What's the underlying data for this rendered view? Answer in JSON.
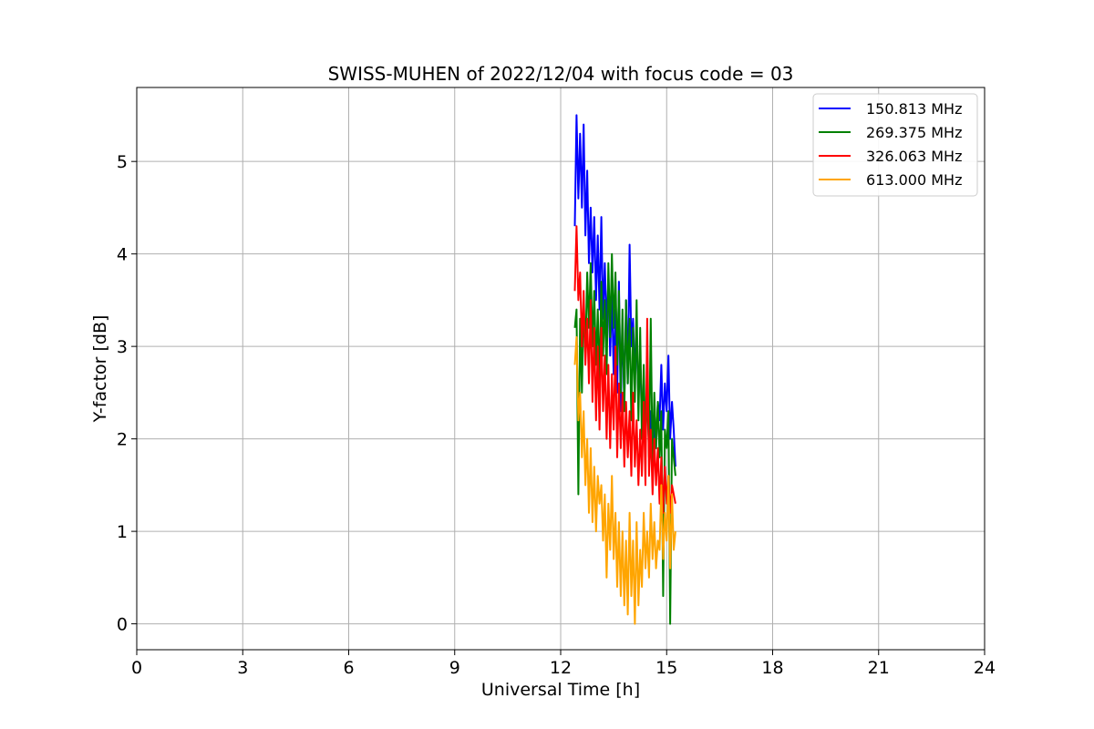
{
  "chart_data": {
    "type": "line",
    "title": "SWISS-MUHEN of 2022/12/04 with focus code = 03",
    "xlabel": "Universal Time [h]",
    "ylabel": "Y-factor [dB]",
    "xlim": [
      0,
      24
    ],
    "ylim": [
      -0.28,
      5.8
    ],
    "xticks": [
      0,
      3,
      6,
      9,
      12,
      15,
      18,
      21,
      24
    ],
    "xtick_labels": [
      "0",
      "3",
      "6",
      "9",
      "12",
      "15",
      "18",
      "21",
      "24"
    ],
    "yticks": [
      0,
      1,
      2,
      3,
      4,
      5
    ],
    "ytick_labels": [
      "0",
      "1",
      "2",
      "3",
      "4",
      "5"
    ],
    "grid": true,
    "legend_position": "top-right",
    "series": [
      {
        "name": "150.813 MHz",
        "color": "#0000ff",
        "x": [
          12.4,
          12.45,
          12.5,
          12.55,
          12.6,
          12.65,
          12.7,
          12.75,
          12.8,
          12.85,
          12.9,
          12.95,
          13.0,
          13.05,
          13.1,
          13.15,
          13.2,
          13.25,
          13.3,
          13.35,
          13.4,
          13.45,
          13.5,
          13.55,
          13.6,
          13.65,
          13.7,
          13.75,
          13.8,
          13.85,
          13.9,
          13.95,
          14.0,
          14.05,
          14.1,
          14.15,
          14.2,
          14.25,
          14.3,
          14.35,
          14.4,
          14.45,
          14.5,
          14.55,
          14.6,
          14.65,
          14.7,
          14.75,
          14.8,
          14.85,
          14.9,
          14.95,
          15.0,
          15.05,
          15.1,
          15.15,
          15.2,
          15.25
        ],
        "y": [
          4.3,
          5.5,
          4.6,
          5.3,
          4.5,
          5.4,
          4.2,
          4.9,
          3.9,
          4.5,
          3.8,
          4.4,
          3.5,
          4.2,
          3.4,
          4.4,
          3.3,
          3.9,
          3.2,
          3.7,
          2.9,
          3.6,
          2.7,
          3.4,
          2.5,
          3.7,
          2.3,
          3.3,
          2.4,
          3.5,
          2.6,
          4.1,
          3.0,
          3.3,
          2.7,
          3.1,
          2.4,
          2.9,
          2.2,
          2.6,
          2.0,
          2.5,
          1.9,
          2.3,
          1.8,
          2.2,
          1.9,
          2.4,
          2.2,
          2.8,
          2.1,
          2.6,
          2.3,
          2.9,
          2.0,
          2.4,
          2.1,
          1.7
        ]
      },
      {
        "name": "269.375 MHz",
        "color": "#008000",
        "x": [
          12.4,
          12.45,
          12.5,
          12.55,
          12.6,
          12.65,
          12.7,
          12.75,
          12.8,
          12.85,
          12.9,
          12.95,
          13.0,
          13.05,
          13.1,
          13.15,
          13.2,
          13.25,
          13.3,
          13.35,
          13.4,
          13.45,
          13.5,
          13.55,
          13.6,
          13.65,
          13.7,
          13.75,
          13.8,
          13.85,
          13.9,
          13.95,
          14.0,
          14.05,
          14.1,
          14.15,
          14.2,
          14.25,
          14.3,
          14.35,
          14.4,
          14.45,
          14.5,
          14.55,
          14.6,
          14.65,
          14.7,
          14.75,
          14.8,
          14.85,
          14.9,
          14.95,
          15.0,
          15.05,
          15.1,
          15.15,
          15.2,
          15.25
        ],
        "y": [
          3.2,
          3.4,
          1.4,
          3.3,
          2.5,
          3.5,
          2.9,
          3.8,
          3.2,
          3.9,
          3.0,
          3.6,
          2.8,
          3.4,
          2.6,
          3.7,
          2.9,
          3.5,
          2.7,
          3.9,
          3.1,
          4.0,
          3.2,
          3.8,
          2.8,
          3.6,
          2.5,
          3.4,
          2.3,
          3.5,
          2.6,
          3.3,
          2.2,
          3.2,
          2.4,
          3.5,
          2.2,
          3.2,
          2.0,
          2.8,
          1.9,
          2.6,
          1.8,
          3.3,
          1.7,
          2.5,
          1.9,
          2.4,
          1.8,
          2.3,
          0.3,
          2.1,
          1.9,
          2.3,
          0.0,
          2.0,
          1.8,
          1.6
        ]
      },
      {
        "name": "326.063 MHz",
        "color": "#ff0000",
        "x": [
          12.4,
          12.45,
          12.5,
          12.55,
          12.6,
          12.65,
          12.7,
          12.75,
          12.8,
          12.85,
          12.9,
          12.95,
          13.0,
          13.05,
          13.1,
          13.15,
          13.2,
          13.25,
          13.3,
          13.35,
          13.4,
          13.45,
          13.5,
          13.55,
          13.6,
          13.65,
          13.7,
          13.75,
          13.8,
          13.85,
          13.9,
          13.95,
          14.0,
          14.05,
          14.1,
          14.15,
          14.2,
          14.25,
          14.3,
          14.35,
          14.4,
          14.45,
          14.5,
          14.55,
          14.6,
          14.65,
          14.7,
          14.75,
          14.8,
          14.85,
          14.9,
          14.95,
          15.0,
          15.05,
          15.1,
          15.15,
          15.2,
          15.25
        ],
        "y": [
          3.6,
          4.3,
          3.5,
          3.8,
          3.0,
          3.6,
          2.8,
          3.3,
          2.6,
          3.5,
          2.4,
          3.2,
          2.2,
          3.0,
          2.1,
          3.2,
          2.3,
          2.9,
          2.0,
          2.8,
          1.9,
          2.7,
          2.1,
          3.0,
          1.8,
          2.6,
          1.9,
          2.5,
          1.7,
          2.4,
          1.8,
          2.3,
          1.6,
          2.5,
          1.7,
          2.2,
          1.5,
          2.1,
          1.6,
          2.4,
          1.5,
          3.3,
          1.6,
          2.1,
          1.4,
          2.0,
          1.5,
          1.9,
          1.3,
          1.8,
          1.2,
          1.7,
          1.3,
          1.6,
          1.2,
          1.5,
          1.4,
          1.3
        ]
      },
      {
        "name": "613.000 MHz",
        "color": "#ffa500",
        "x": [
          12.4,
          12.45,
          12.5,
          12.55,
          12.6,
          12.65,
          12.7,
          12.75,
          12.8,
          12.85,
          12.9,
          12.95,
          13.0,
          13.05,
          13.1,
          13.15,
          13.2,
          13.25,
          13.3,
          13.35,
          13.4,
          13.45,
          13.5,
          13.55,
          13.6,
          13.65,
          13.7,
          13.75,
          13.8,
          13.85,
          13.9,
          13.95,
          14.0,
          14.05,
          14.1,
          14.15,
          14.2,
          14.25,
          14.3,
          14.35,
          14.4,
          14.45,
          14.5,
          14.55,
          14.6,
          14.65,
          14.7,
          14.75,
          14.8,
          14.85,
          14.9,
          14.95,
          15.0,
          15.05,
          15.1,
          15.15,
          15.2,
          15.25
        ],
        "y": [
          2.8,
          3.1,
          2.2,
          2.5,
          1.8,
          2.3,
          1.5,
          2.0,
          1.2,
          1.9,
          1.1,
          1.7,
          1.0,
          1.6,
          1.3,
          1.5,
          0.9,
          1.4,
          0.5,
          1.3,
          0.8,
          1.6,
          0.7,
          1.2,
          0.4,
          1.1,
          0.3,
          1.0,
          0.2,
          0.9,
          0.1,
          1.2,
          0.3,
          0.9,
          0.0,
          1.1,
          0.2,
          0.8,
          0.4,
          1.2,
          0.6,
          1.0,
          0.5,
          1.3,
          0.7,
          1.1,
          0.6,
          0.9,
          0.8,
          1.5,
          0.7,
          1.2,
          0.9,
          1.6,
          0.6,
          1.4,
          0.8,
          1.0
        ]
      }
    ]
  }
}
